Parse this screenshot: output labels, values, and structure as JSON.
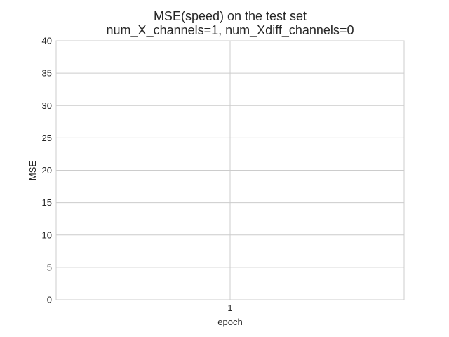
{
  "chart_data": {
    "type": "line",
    "title": "MSE(speed) on the test set",
    "subtitle": "num_X_channels=1, num_Xdiff_channels=0",
    "xlabel": "epoch",
    "ylabel": "MSE",
    "x_ticks": [
      "1"
    ],
    "y_ticks": [
      0,
      5,
      10,
      15,
      20,
      25,
      30,
      35,
      40
    ],
    "ylim": [
      0,
      40
    ],
    "grid": true,
    "series": []
  },
  "colors": {
    "grid": "#cccccc",
    "frame": "#cccccc",
    "text": "#262626",
    "background": "#ffffff"
  }
}
